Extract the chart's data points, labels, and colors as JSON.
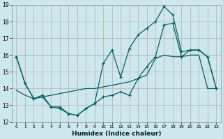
{
  "xlabel": "Humidex (Indice chaleur)",
  "bg_color": "#cce8ec",
  "grid_color": "#c0a8a8",
  "line_color": "#006060",
  "xlim": [
    -0.5,
    23.5
  ],
  "ylim": [
    12,
    19
  ],
  "yticks": [
    12,
    13,
    14,
    15,
    16,
    17,
    18,
    19
  ],
  "xticks": [
    0,
    1,
    2,
    3,
    4,
    5,
    6,
    7,
    8,
    9,
    10,
    11,
    12,
    13,
    14,
    15,
    16,
    17,
    18,
    19,
    20,
    21,
    22,
    23
  ],
  "line1_x": [
    0,
    1,
    2,
    3,
    4,
    5,
    6,
    7,
    8,
    9,
    10,
    11,
    12,
    13,
    14,
    15,
    16,
    17,
    18,
    19,
    20,
    21,
    22,
    23
  ],
  "line1_y": [
    15.9,
    14.3,
    13.4,
    13.5,
    12.9,
    12.9,
    12.5,
    12.4,
    12.8,
    13.1,
    13.5,
    13.6,
    13.8,
    13.6,
    14.6,
    15.3,
    15.9,
    17.8,
    17.9,
    15.9,
    16.3,
    16.3,
    15.9,
    14.0
  ],
  "line2_x": [
    0,
    1,
    2,
    3,
    4,
    5,
    6,
    7,
    8,
    9,
    10,
    11,
    12,
    13,
    14,
    15,
    16,
    17,
    18,
    19,
    20,
    21,
    22,
    23
  ],
  "line2_y": [
    13.9,
    13.6,
    13.4,
    13.5,
    13.6,
    13.7,
    13.8,
    13.9,
    14.0,
    14.0,
    14.1,
    14.2,
    14.3,
    14.4,
    14.6,
    14.8,
    15.8,
    16.0,
    15.9,
    15.9,
    16.0,
    16.0,
    14.0,
    14.0
  ],
  "line3_x": [
    0,
    1,
    2,
    3,
    4,
    5,
    6,
    7,
    8,
    9,
    10,
    11,
    12,
    13,
    14,
    15,
    16,
    17,
    18,
    19,
    20,
    21,
    22,
    23
  ],
  "line3_y": [
    15.9,
    14.3,
    13.4,
    13.6,
    12.9,
    12.8,
    12.5,
    12.4,
    12.8,
    13.1,
    15.5,
    16.3,
    14.7,
    16.4,
    17.2,
    17.6,
    18.0,
    18.9,
    18.4,
    16.2,
    16.3,
    16.3,
    15.9,
    14.0
  ]
}
